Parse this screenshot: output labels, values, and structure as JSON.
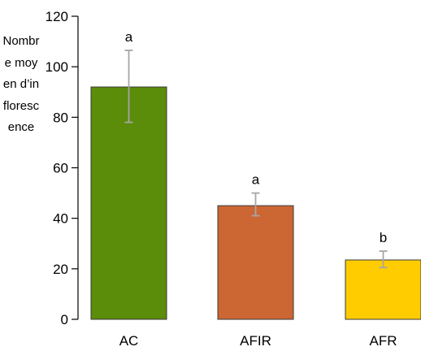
{
  "chart_data": {
    "type": "bar",
    "ylabel": "Nombre moyen d’inflorescence",
    "categories": [
      "AC",
      "AFIR",
      "AFR"
    ],
    "values": [
      92,
      45,
      23.5
    ],
    "error_low": [
      78,
      41,
      20.5
    ],
    "error_high": [
      106.5,
      50,
      27
    ],
    "significance": [
      "a",
      "a",
      "b"
    ],
    "ylim": [
      0,
      120
    ],
    "yticks": [
      0,
      20,
      40,
      60,
      80,
      100,
      120
    ],
    "grid": false,
    "colors": [
      "#5b8c0a",
      "#cc6633",
      "#ffcc00"
    ],
    "error_bar_color": "#a6a6a6"
  }
}
